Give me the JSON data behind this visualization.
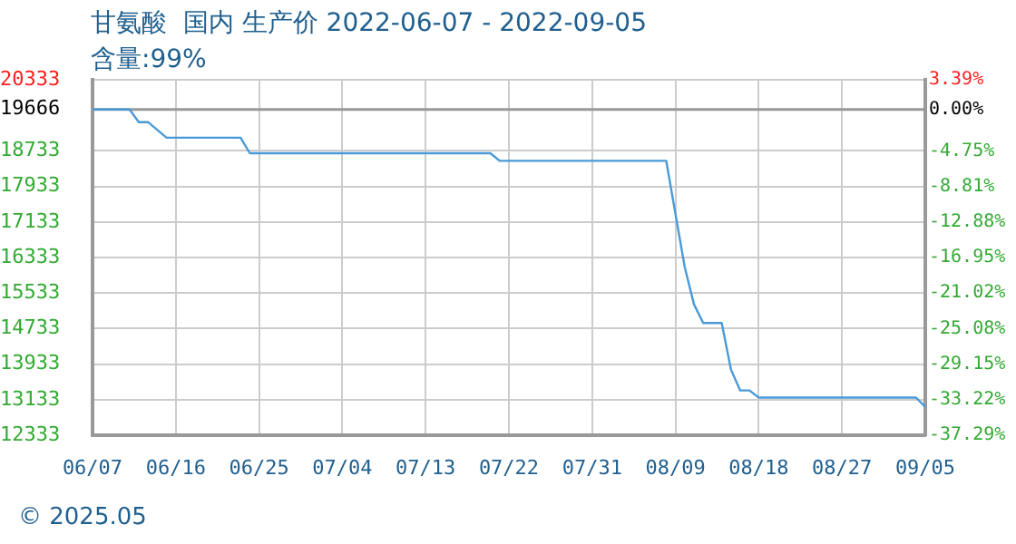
{
  "chart_data": {
    "type": "line",
    "title": "甘氨酸  国内 生产价 2022-06-07 - 2022-09-05",
    "subtitle": "含量:99%",
    "annotations": [
      "© 2025.05"
    ],
    "x": [
      "2022-06-07",
      "2022-06-11",
      "2022-06-12",
      "2022-06-13",
      "2022-06-15",
      "2022-06-23",
      "2022-06-24",
      "2022-07-20",
      "2022-07-21",
      "2022-08-08",
      "2022-08-10",
      "2022-08-11",
      "2022-08-12",
      "2022-08-14",
      "2022-08-15",
      "2022-08-16",
      "2022-08-17",
      "2022-08-18",
      "2022-09-04",
      "2022-09-05"
    ],
    "series": [
      {
        "color": "#4a9ad8",
        "values": [
          19666,
          19666,
          19380,
          19380,
          19030,
          19030,
          18680,
          18680,
          18510,
          18510,
          16120,
          15280,
          14860,
          14860,
          13810,
          13340,
          13340,
          13180,
          13180,
          12970
        ]
      }
    ],
    "xlim": [
      "2022-06-07",
      "2022-09-05"
    ],
    "xticks": [
      {
        "value": "2022-06-07",
        "label": "06/07"
      },
      {
        "value": "2022-06-16",
        "label": "06/16"
      },
      {
        "value": "2022-06-25",
        "label": "06/25"
      },
      {
        "value": "2022-07-04",
        "label": "07/04"
      },
      {
        "value": "2022-07-13",
        "label": "07/13"
      },
      {
        "value": "2022-07-22",
        "label": "07/22"
      },
      {
        "value": "2022-07-31",
        "label": "07/31"
      },
      {
        "value": "2022-08-09",
        "label": "08/09"
      },
      {
        "value": "2022-08-18",
        "label": "08/18"
      },
      {
        "value": "2022-08-27",
        "label": "08/27"
      },
      {
        "value": "2022-09-05",
        "label": "09/05"
      }
    ],
    "ylim": [
      12333,
      20333
    ],
    "yticks": [
      12333,
      13133,
      13933,
      14733,
      15533,
      16333,
      17133,
      17933,
      18733,
      19666,
      20333
    ],
    "y2lim": [
      -37.29,
      3.39
    ],
    "y2ticks": [
      {
        "value": -37.29,
        "label": "-37.29%"
      },
      {
        "value": -33.22,
        "label": "-33.22%"
      },
      {
        "value": -29.15,
        "label": "-29.15%"
      },
      {
        "value": -25.08,
        "label": "-25.08%"
      },
      {
        "value": -21.02,
        "label": "-21.02%"
      },
      {
        "value": -16.95,
        "label": "-16.95%"
      },
      {
        "value": -12.88,
        "label": "-12.88%"
      },
      {
        "value": -8.81,
        "label": "-8.81%"
      },
      {
        "value": -4.75,
        "label": "-4.75%"
      },
      {
        "value": 0,
        "label": "0.00%"
      },
      {
        "value": 3.39,
        "label": "3.39%"
      }
    ],
    "ref_lines": [
      {
        "axis": "y",
        "value": 19666,
        "color": "#999999"
      }
    ],
    "grid": true,
    "legend": false,
    "marker": "none",
    "line_style": "solid"
  }
}
